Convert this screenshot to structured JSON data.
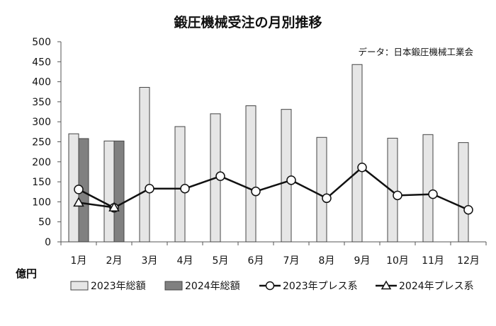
{
  "chart_data": {
    "type": "bar",
    "title": "鍛圧機械受注の月別推移",
    "source_note": "データ：日本鍛圧機械工業会",
    "ylabel": "億円",
    "ylim": [
      0,
      500
    ],
    "yticks": [
      0,
      50,
      100,
      150,
      200,
      250,
      300,
      350,
      400,
      450,
      500
    ],
    "categories": [
      "1月",
      "2月",
      "3月",
      "4月",
      "5月",
      "6月",
      "7月",
      "8月",
      "9月",
      "10月",
      "11月",
      "12月"
    ],
    "bar_series": [
      {
        "name": "2023年総額",
        "color": "#e6e6e6",
        "values": [
          270,
          252,
          386,
          288,
          320,
          340,
          331,
          261,
          443,
          259,
          268,
          248
        ]
      },
      {
        "name": "2024年総額",
        "color": "#808080",
        "values": [
          258,
          252,
          null,
          null,
          null,
          null,
          null,
          null,
          null,
          null,
          null,
          null
        ]
      }
    ],
    "line_series": [
      {
        "name": "2023年プレス系",
        "marker": "circle",
        "values": [
          131,
          85,
          133,
          133,
          164,
          126,
          154,
          109,
          186,
          116,
          119,
          80
        ]
      },
      {
        "name": "2024年プレス系",
        "marker": "triangle",
        "values": [
          98,
          86,
          null,
          null,
          null,
          null,
          null,
          null,
          null,
          null,
          null,
          null
        ]
      }
    ],
    "legend_position": "bottom",
    "grid": false
  }
}
